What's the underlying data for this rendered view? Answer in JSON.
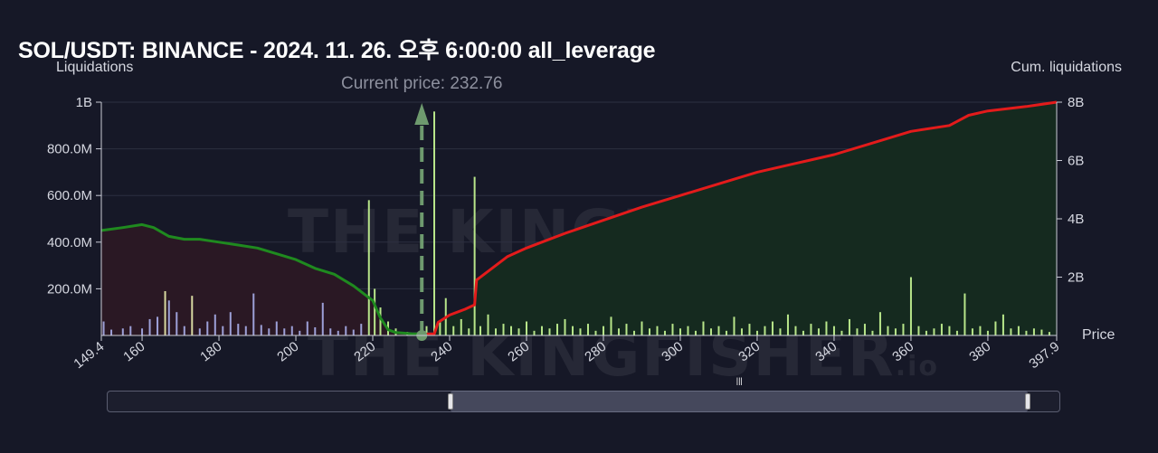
{
  "header": {
    "title": "SOL/USDT: BINANCE - 2024. 11. 26. 오후 6:00:00 all_leverage"
  },
  "watermark": {
    "brand": "THE KINGFISHER",
    "suffix": ".io"
  },
  "navigator": {
    "range_start_fraction": 0.36,
    "range_end_fraction": 0.965
  },
  "chart_data": {
    "type": "bar",
    "title": "SOL/USDT: BINANCE - 2024. 11. 26. 오후 6:00:00 all_leverage",
    "xlabel": "Price",
    "ylabel_left": "Liquidations",
    "ylabel_right": "Cum. liquidations",
    "current_price_label": "Current price: 232.76",
    "current_price": 232.76,
    "xlim": [
      149.4,
      397.9
    ],
    "ylim_left": [
      0,
      1000000000
    ],
    "ylim_right": [
      0,
      8000000000
    ],
    "x_ticks": [
      "149.4",
      "160",
      "180",
      "200",
      "220",
      "240",
      "260",
      "280",
      "300",
      "320",
      "340",
      "360",
      "380",
      "397.9"
    ],
    "x_tick_values": [
      149.4,
      160,
      180,
      200,
      220,
      240,
      260,
      280,
      300,
      320,
      340,
      360,
      380,
      397.9
    ],
    "y_left_ticks": [
      "200.0M",
      "400.0M",
      "600.0M",
      "800.0M",
      "1B"
    ],
    "y_left_tick_values": [
      200000000,
      400000000,
      600000000,
      800000000,
      1000000000
    ],
    "y_right_ticks": [
      "2B",
      "4B",
      "6B",
      "8B"
    ],
    "y_right_tick_values": [
      2000000000,
      4000000000,
      6000000000,
      8000000000
    ],
    "colors": {
      "short_bars": "#b8e68a",
      "long_bars": "#9da0d8",
      "long_bars_alt": "#d8d8a0",
      "cum_short_line": "#e31b1b",
      "cum_long_line": "#1f8a1f",
      "cum_short_fill": "#152a1f",
      "cum_long_fill": "#2a1824",
      "current_price": "#6e9a6e",
      "grid": "#2c2f40"
    },
    "bars": {
      "x": [
        150,
        152,
        155,
        157,
        160,
        162,
        164,
        166,
        167,
        169,
        171,
        173,
        175,
        177,
        179,
        181,
        183,
        185,
        187,
        189,
        191,
        193,
        195,
        197,
        199,
        201,
        203,
        205,
        207,
        209,
        211,
        213,
        215,
        217,
        219,
        220.5,
        222,
        224,
        226,
        229,
        234,
        236,
        237.5,
        239,
        241,
        243,
        245,
        246.5,
        248,
        250,
        252,
        254,
        256,
        258,
        260,
        262,
        264,
        266,
        268,
        270,
        272,
        274,
        276,
        278,
        280,
        282,
        284,
        286,
        288,
        290,
        292,
        294,
        296,
        298,
        300,
        302,
        304,
        306,
        308,
        310,
        312,
        314,
        316,
        318,
        320,
        322,
        324,
        326,
        328,
        330,
        332,
        334,
        336,
        338,
        340,
        342,
        344,
        346,
        348,
        350,
        352,
        354,
        356,
        358,
        360,
        362,
        364,
        366,
        368,
        370,
        372,
        374,
        376,
        378,
        380,
        382,
        384,
        386,
        388,
        390,
        392,
        394,
        396
      ],
      "values": [
        60000000,
        25000000,
        30000000,
        40000000,
        30000000,
        70000000,
        80000000,
        190000000,
        150000000,
        100000000,
        40000000,
        170000000,
        30000000,
        60000000,
        90000000,
        40000000,
        100000000,
        50000000,
        40000000,
        180000000,
        45000000,
        30000000,
        60000000,
        30000000,
        40000000,
        20000000,
        60000000,
        35000000,
        140000000,
        30000000,
        20000000,
        40000000,
        25000000,
        50000000,
        580000000,
        200000000,
        120000000,
        60000000,
        30000000,
        15000000,
        40000000,
        960000000,
        60000000,
        160000000,
        40000000,
        70000000,
        30000000,
        680000000,
        40000000,
        90000000,
        30000000,
        50000000,
        40000000,
        30000000,
        60000000,
        20000000,
        40000000,
        30000000,
        50000000,
        70000000,
        40000000,
        30000000,
        50000000,
        20000000,
        40000000,
        80000000,
        30000000,
        50000000,
        20000000,
        60000000,
        30000000,
        40000000,
        20000000,
        50000000,
        30000000,
        40000000,
        20000000,
        60000000,
        30000000,
        40000000,
        20000000,
        80000000,
        30000000,
        50000000,
        20000000,
        40000000,
        60000000,
        30000000,
        90000000,
        40000000,
        20000000,
        50000000,
        30000000,
        60000000,
        40000000,
        20000000,
        70000000,
        30000000,
        50000000,
        20000000,
        100000000,
        40000000,
        30000000,
        50000000,
        250000000,
        40000000,
        20000000,
        30000000,
        50000000,
        40000000,
        20000000,
        180000000,
        30000000,
        40000000,
        20000000,
        60000000,
        90000000,
        30000000,
        40000000,
        20000000,
        30000000,
        25000000,
        15000000
      ],
      "side": [
        "long",
        "long",
        "long",
        "long",
        "long",
        "long",
        "long",
        "alt",
        "long",
        "long",
        "long",
        "alt",
        "long",
        "long",
        "long",
        "long",
        "long",
        "long",
        "long",
        "long",
        "long",
        "long",
        "long",
        "long",
        "long",
        "long",
        "long",
        "long",
        "long",
        "long",
        "long",
        "long",
        "long",
        "long",
        "short",
        "short",
        "short",
        "short",
        "short",
        "short",
        "short",
        "short",
        "short",
        "short",
        "short",
        "short",
        "short",
        "short",
        "short",
        "short",
        "short",
        "short",
        "short",
        "short",
        "short",
        "short",
        "short",
        "short",
        "short",
        "short",
        "short",
        "short",
        "short",
        "short",
        "short",
        "short",
        "short",
        "short",
        "short",
        "short",
        "short",
        "short",
        "short",
        "short",
        "short",
        "short",
        "short",
        "short",
        "short",
        "short",
        "short",
        "short",
        "short",
        "short",
        "short",
        "short",
        "short",
        "short",
        "short",
        "short",
        "short",
        "short",
        "short",
        "short",
        "short",
        "short",
        "short",
        "short",
        "short",
        "short",
        "short",
        "short",
        "short",
        "short",
        "short",
        "short",
        "short",
        "short",
        "short",
        "short",
        "short",
        "short",
        "short",
        "short",
        "short",
        "short",
        "short",
        "short",
        "short",
        "short",
        "short",
        "short",
        "short"
      ]
    },
    "cum_long": {
      "x": [
        149.4,
        155,
        160,
        163,
        167,
        171,
        175,
        180,
        185,
        190,
        195,
        200,
        205,
        210,
        215,
        218,
        220,
        222,
        224,
        226,
        228,
        230,
        232.76
      ],
      "values": [
        3600000000,
        3700000000,
        3800000000,
        3700000000,
        3400000000,
        3300000000,
        3300000000,
        3200000000,
        3100000000,
        3000000000,
        2800000000,
        2600000000,
        2300000000,
        2100000000,
        1700000000,
        1400000000,
        1200000000,
        600000000,
        200000000,
        100000000,
        80000000,
        60000000,
        50000000
      ]
    },
    "cum_short": {
      "x": [
        232.76,
        236,
        237,
        240,
        244,
        246.5,
        247,
        250,
        255,
        260,
        265,
        270,
        280,
        290,
        300,
        310,
        320,
        330,
        340,
        350,
        360,
        370,
        375,
        380,
        390,
        397.9
      ],
      "values": [
        50000000,
        50000000,
        450000000,
        700000000,
        900000000,
        1050000000,
        1900000000,
        2200000000,
        2700000000,
        3000000000,
        3250000000,
        3500000000,
        3950000000,
        4400000000,
        4800000000,
        5200000000,
        5600000000,
        5900000000,
        6200000000,
        6600000000,
        7000000000,
        7200000000,
        7550000000,
        7700000000,
        7850000000,
        8000000000
      ]
    }
  }
}
